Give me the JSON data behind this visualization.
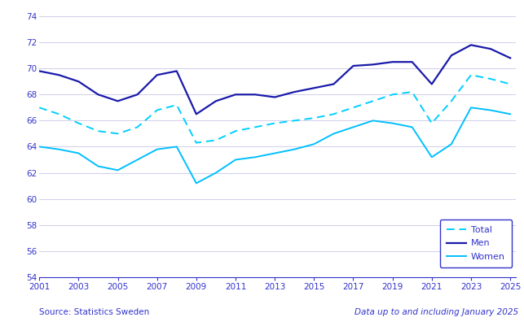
{
  "source_text": "Source: Statistics Sweden",
  "data_note": "Data up to and including January 2025",
  "color_total": "#00CFFF",
  "color_men": "#1a1aaa",
  "color_women": "#00BFFF",
  "color_axis": "#3333cc",
  "color_grid": "#c8c8e8",
  "background_color": "#ffffff",
  "ylim": [
    54,
    74
  ],
  "yticks": [
    54,
    56,
    58,
    60,
    62,
    64,
    66,
    68,
    70,
    72,
    74
  ],
  "xticks": [
    2001,
    2003,
    2005,
    2007,
    2009,
    2011,
    2013,
    2015,
    2017,
    2019,
    2021,
    2023,
    2025
  ],
  "years_total": [
    2001,
    2002,
    2003,
    2004,
    2005,
    2006,
    2007,
    2008,
    2009,
    2010,
    2011,
    2012,
    2013,
    2014,
    2015,
    2016,
    2017,
    2018,
    2019,
    2020,
    2021,
    2022,
    2023,
    2024,
    2025
  ],
  "values_total": [
    67.0,
    66.5,
    65.8,
    65.2,
    65.0,
    65.5,
    66.8,
    67.2,
    64.3,
    64.5,
    65.2,
    65.5,
    65.8,
    66.0,
    66.2,
    66.5,
    67.0,
    67.5,
    68.0,
    68.2,
    65.8,
    67.5,
    69.5,
    69.2,
    68.8
  ],
  "years_men": [
    2001,
    2002,
    2003,
    2004,
    2005,
    2006,
    2007,
    2008,
    2009,
    2010,
    2011,
    2012,
    2013,
    2014,
    2015,
    2016,
    2017,
    2018,
    2019,
    2020,
    2021,
    2022,
    2023,
    2024,
    2025
  ],
  "values_men": [
    69.8,
    69.5,
    69.0,
    68.0,
    67.5,
    68.0,
    69.5,
    69.8,
    66.5,
    67.5,
    68.0,
    68.0,
    67.8,
    68.2,
    68.5,
    68.8,
    70.2,
    70.3,
    70.5,
    70.5,
    68.8,
    71.0,
    71.8,
    71.5,
    70.8
  ],
  "years_women": [
    2001,
    2002,
    2003,
    2004,
    2005,
    2006,
    2007,
    2008,
    2009,
    2010,
    2011,
    2012,
    2013,
    2014,
    2015,
    2016,
    2017,
    2018,
    2019,
    2020,
    2021,
    2022,
    2023,
    2024,
    2025
  ],
  "values_women": [
    64.0,
    63.8,
    63.5,
    62.5,
    62.2,
    63.0,
    63.8,
    64.0,
    61.2,
    62.0,
    63.0,
    63.2,
    63.5,
    63.8,
    64.2,
    65.0,
    65.5,
    66.0,
    65.8,
    65.5,
    63.2,
    64.2,
    67.0,
    66.8,
    66.5
  ]
}
